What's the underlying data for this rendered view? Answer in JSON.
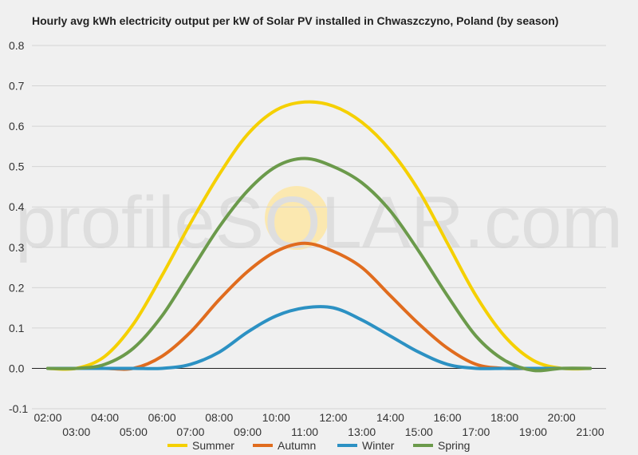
{
  "chart_data": {
    "type": "line",
    "title": "Hourly avg kWh electricity output per kW of Solar PV installed in Chwaszczyno, Poland (by season)",
    "xlabel": "",
    "ylabel": "",
    "ylim": [
      -0.1,
      0.8
    ],
    "yticks": [
      "0.8",
      "0.7",
      "0.6",
      "0.5",
      "0.4",
      "0.3",
      "0.2",
      "0.1",
      "0.0",
      "-0.1"
    ],
    "xlim": [
      2,
      21
    ],
    "xticks_top": [
      "02:00",
      "04:00",
      "06:00",
      "08:00",
      "10:00",
      "12:00",
      "14:00",
      "16:00",
      "18:00",
      "20:00"
    ],
    "xticks_bottom": [
      "03:00",
      "05:00",
      "07:00",
      "09:00",
      "11:00",
      "13:00",
      "15:00",
      "17:00",
      "19:00",
      "21:00"
    ],
    "x": [
      2,
      3,
      4,
      5,
      6,
      7,
      8,
      9,
      10,
      11,
      12,
      13,
      14,
      15,
      16,
      17,
      18,
      19,
      20,
      21
    ],
    "grid": true,
    "legend_position": "bottom",
    "watermark": "profileSOLAR.com",
    "series": [
      {
        "name": "Summer",
        "color": "#f5d000",
        "values": [
          0.0,
          0.0,
          0.03,
          0.11,
          0.23,
          0.36,
          0.48,
          0.58,
          0.64,
          0.66,
          0.65,
          0.61,
          0.54,
          0.44,
          0.31,
          0.18,
          0.08,
          0.02,
          0.0,
          0.0
        ]
      },
      {
        "name": "Autumn",
        "color": "#e06c1e",
        "values": [
          0.0,
          0.0,
          0.0,
          0.0,
          0.03,
          0.09,
          0.17,
          0.24,
          0.29,
          0.31,
          0.29,
          0.25,
          0.18,
          0.11,
          0.05,
          0.01,
          0.0,
          0.0,
          0.0,
          0.0
        ]
      },
      {
        "name": "Winter",
        "color": "#2c91c3",
        "values": [
          0.0,
          0.0,
          0.0,
          0.0,
          0.0,
          0.01,
          0.04,
          0.09,
          0.13,
          0.15,
          0.15,
          0.12,
          0.08,
          0.04,
          0.01,
          0.0,
          0.0,
          0.0,
          0.0,
          0.0
        ]
      },
      {
        "name": "Spring",
        "color": "#6b9a4b",
        "values": [
          0.0,
          0.0,
          0.01,
          0.05,
          0.13,
          0.24,
          0.35,
          0.44,
          0.5,
          0.52,
          0.5,
          0.46,
          0.39,
          0.29,
          0.18,
          0.08,
          0.02,
          -0.005,
          0.0,
          0.0
        ]
      }
    ]
  }
}
